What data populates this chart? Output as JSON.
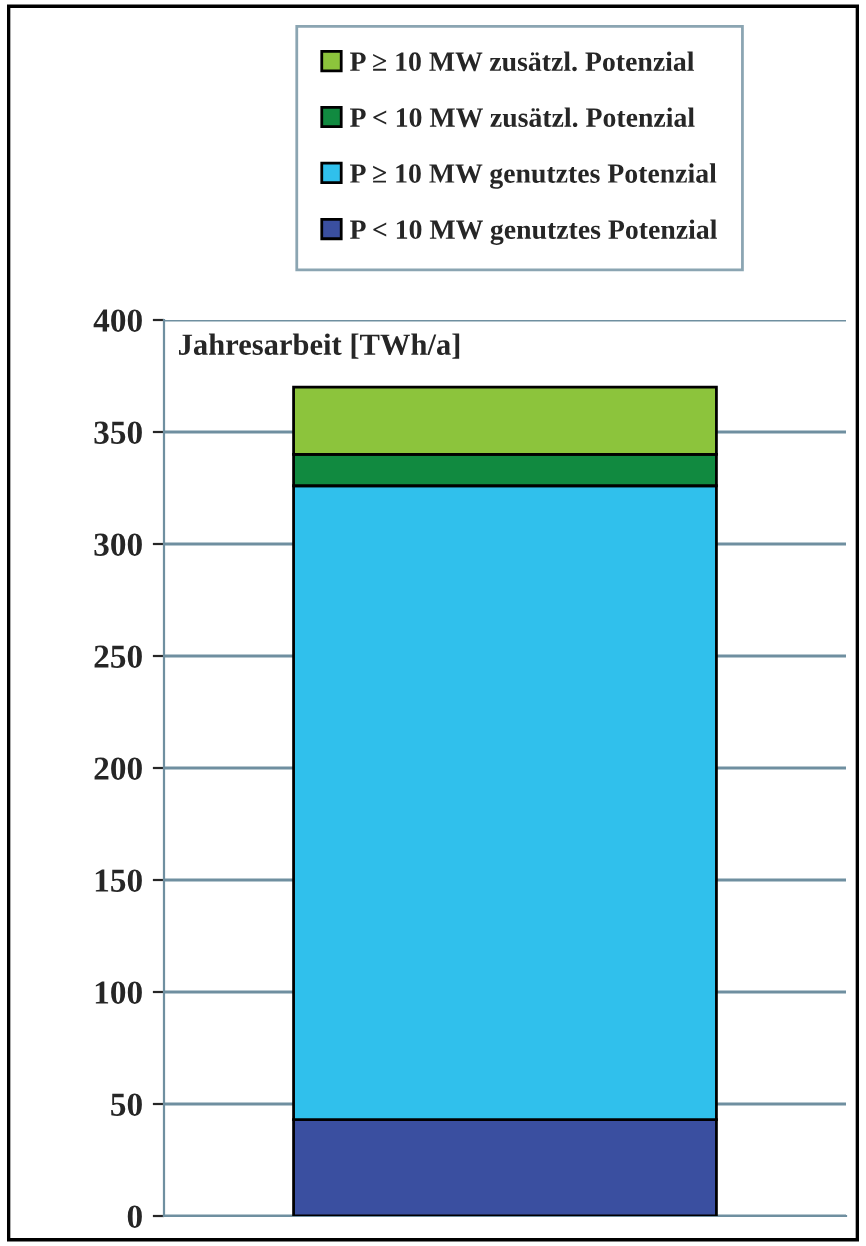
{
  "chart_data": {
    "type": "bar",
    "ylabel": "Jahresarbeit [TWh/a]",
    "categories": [
      null
    ],
    "stacked": true,
    "series": [
      {
        "name": "P < 10 MW genutztes Potenzial",
        "color": "#3a4fa0",
        "values": [
          43
        ]
      },
      {
        "name": "P ≥ 10 MW genutztes Potenzial",
        "color": "#30c0ec",
        "values": [
          283
        ]
      },
      {
        "name": "P < 10 MW zusätzl. Potenzial",
        "color": "#118a40",
        "values": [
          14
        ]
      },
      {
        "name": "P ≥ 10 MW zusätzl. Potenzial",
        "color": "#8cc43c",
        "values": [
          30
        ]
      }
    ],
    "ylim": [
      0,
      400
    ],
    "yticks": [
      0,
      50,
      100,
      150,
      200,
      250,
      300,
      350,
      400
    ],
    "grid": "y",
    "legend": "top"
  }
}
